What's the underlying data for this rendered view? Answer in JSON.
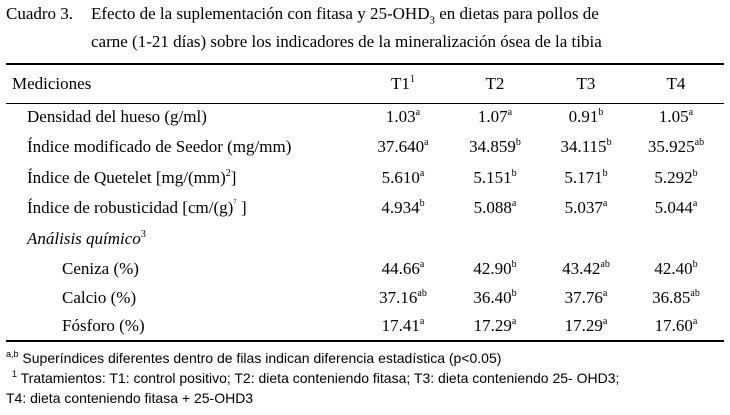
{
  "caption": {
    "label": "Cuadro 3.",
    "line1_a": "Efecto de la suplementación con fitasa y 25-OHD",
    "line1_sub": "3",
    "line1_b": " en dietas para pollos de",
    "line2": "carne (1-21 días) sobre los indicadores de la mineralización ósea de la tibia"
  },
  "table": {
    "header": {
      "label": "Mediciones",
      "cols": [
        {
          "text": "T1",
          "sup": "1"
        },
        {
          "text": "T2",
          "sup": ""
        },
        {
          "text": "T3",
          "sup": ""
        },
        {
          "text": "T4",
          "sup": ""
        }
      ]
    },
    "rows": [
      {
        "label": "Densidad del hueso (g/ml)",
        "label_sup": "",
        "label_after": "",
        "cells": [
          {
            "v": "1.03",
            "s": "a"
          },
          {
            "v": "1.07",
            "s": "a"
          },
          {
            "v": "0.91",
            "s": "b"
          },
          {
            "v": "1.05",
            "s": "a"
          }
        ]
      },
      {
        "label": "Índice modificado de Seedor (mg/mm)",
        "label_sup": "",
        "label_after": "",
        "cells": [
          {
            "v": "37.640",
            "s": "a"
          },
          {
            "v": "34.859",
            "s": "b"
          },
          {
            "v": "34.115",
            "s": "b"
          },
          {
            "v": "35.925",
            "s": "ab"
          }
        ]
      },
      {
        "label": "Índice de Quetelet [mg/(mm)",
        "label_sup": "2",
        "label_after": "]",
        "cells": [
          {
            "v": "5.610",
            "s": "a"
          },
          {
            "v": "5.151",
            "s": "b"
          },
          {
            "v": "5.171",
            "s": "b"
          },
          {
            "v": "5.292",
            "s": "b"
          }
        ]
      },
      {
        "label": "Índice de robusticidad [cm/(g)",
        "label_sup": "⁷",
        "label_after": " ]",
        "cells": [
          {
            "v": "4.934",
            "s": "b"
          },
          {
            "v": "5.088",
            "s": "a"
          },
          {
            "v": "5.037",
            "s": "a"
          },
          {
            "v": "5.044",
            "s": "a"
          }
        ]
      }
    ],
    "section": {
      "label": "Análisis químico",
      "sup": "3"
    },
    "subrows": [
      {
        "label": "Ceniza (%)",
        "cells": [
          {
            "v": "44.66",
            "s": "a"
          },
          {
            "v": "42.90",
            "s": "b"
          },
          {
            "v": "43.42",
            "s": "ab"
          },
          {
            "v": "42.40",
            "s": "b"
          }
        ]
      },
      {
        "label": "Calcio (%)",
        "cells": [
          {
            "v": "37.16",
            "s": "ab"
          },
          {
            "v": "36.40",
            "s": "b"
          },
          {
            "v": "37.76",
            "s": "a"
          },
          {
            "v": "36.85",
            "s": "ab"
          }
        ]
      },
      {
        "label": "Fósforo (%)",
        "cells": [
          {
            "v": "17.41",
            "s": "a"
          },
          {
            "v": "17.29",
            "s": "a"
          },
          {
            "v": "17.29",
            "s": "a"
          },
          {
            "v": "17.60",
            "s": "a"
          }
        ]
      }
    ]
  },
  "notes": {
    "n1_sup": "a,b",
    "n1": " Superíndices diferentes dentro de filas indican diferencia estadística (p<0.05)",
    "n2_sup": "1",
    "n2": " Tratamientos: T1: control positivo; T2: dieta conteniendo fitasa; T3: dieta conteniendo 25- OHD3;",
    "n3": "T4: dieta conteniendo fitasa + 25-OHD3"
  }
}
